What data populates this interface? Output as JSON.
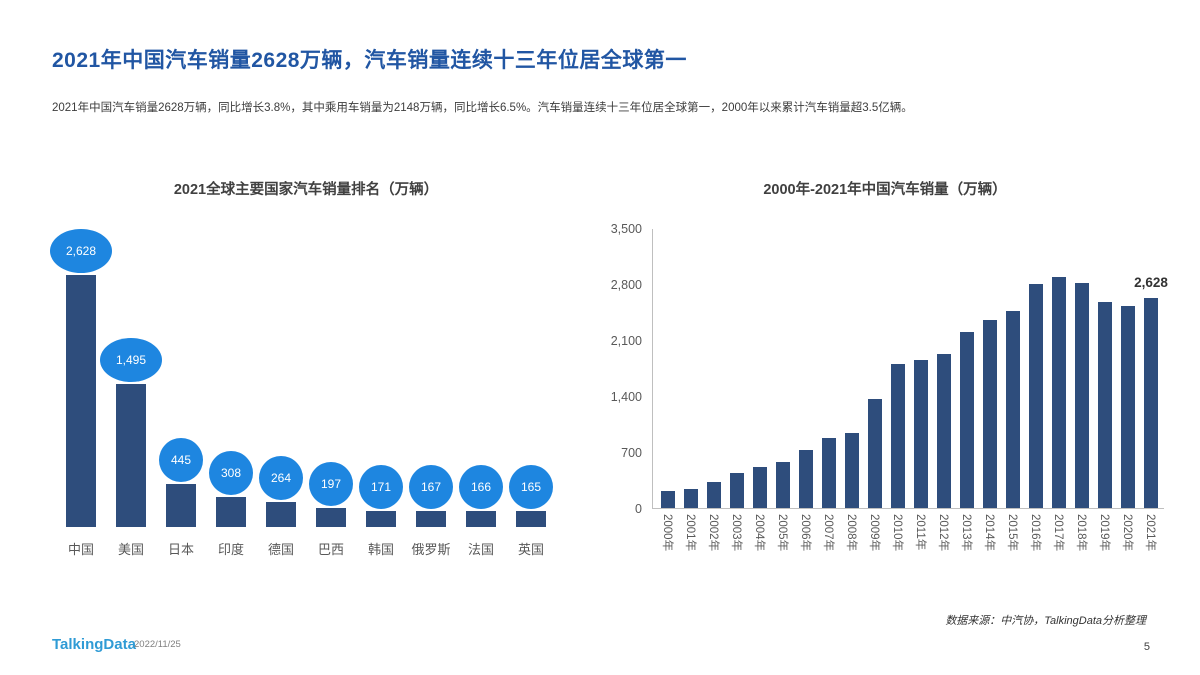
{
  "slide": {
    "title": "2021年中国汽车销量2628万辆，汽车销量连续十三年位居全球第一",
    "subtitle": "2021年中国汽车销量2628万辆，同比增长3.8%，其中乘用车销量为2148万辆，同比增长6.5%。汽车销量连续十三年位居全球第一，2000年以来累计汽车销量超3.5亿辆。",
    "source": "数据来源：中汽协，TalkingData分析整理",
    "footer": {
      "logo": "TalkingData",
      "date": "2022/11/25",
      "page": "5"
    }
  },
  "colors": {
    "title_blue": "#2156A3",
    "bar_navy": "#2E4D7C",
    "bubble_blue": "#1E86E0",
    "axis_gray": "#595959",
    "logo_blue": "#2F9BD5"
  },
  "chart_data": [
    {
      "type": "bar",
      "title": "2021全球主要国家汽车销量排名（万辆）",
      "categories": [
        "中国",
        "美国",
        "日本",
        "印度",
        "德国",
        "巴西",
        "韩国",
        "俄罗斯",
        "法国",
        "英国"
      ],
      "values": [
        2628,
        1495,
        445,
        308,
        264,
        197,
        171,
        167,
        166,
        165
      ],
      "value_labels": [
        "2,628",
        "1,495",
        "445",
        "308",
        "264",
        "197",
        "171",
        "167",
        "166",
        "165"
      ],
      "xlabel": "",
      "ylabel": "",
      "ylim": [
        0,
        2628
      ],
      "grid": false,
      "legend": "none",
      "note": "values shown in blue circular bubbles above navy bars"
    },
    {
      "type": "bar",
      "title": "2000年-2021年中国汽车销量（万辆）",
      "categories": [
        "2000年",
        "2001年",
        "2002年",
        "2003年",
        "2004年",
        "2005年",
        "2006年",
        "2007年",
        "2008年",
        "2009年",
        "2010年",
        "2011年",
        "2012年",
        "2013年",
        "2014年",
        "2015年",
        "2016年",
        "2017年",
        "2018年",
        "2019年",
        "2020年",
        "2021年"
      ],
      "values": [
        209,
        237,
        325,
        439,
        507,
        576,
        722,
        879,
        938,
        1364,
        1806,
        1851,
        1931,
        2198,
        2349,
        2460,
        2803,
        2888,
        2808,
        2577,
        2531,
        2628
      ],
      "y_tick_labels": [
        "3,500",
        "2,800",
        "2,100",
        "1,400",
        "700",
        "0"
      ],
      "xlabel": "",
      "ylabel": "",
      "ylim": [
        0,
        3500
      ],
      "grid": false,
      "legend": "none",
      "last_value_label": "2,628"
    }
  ]
}
